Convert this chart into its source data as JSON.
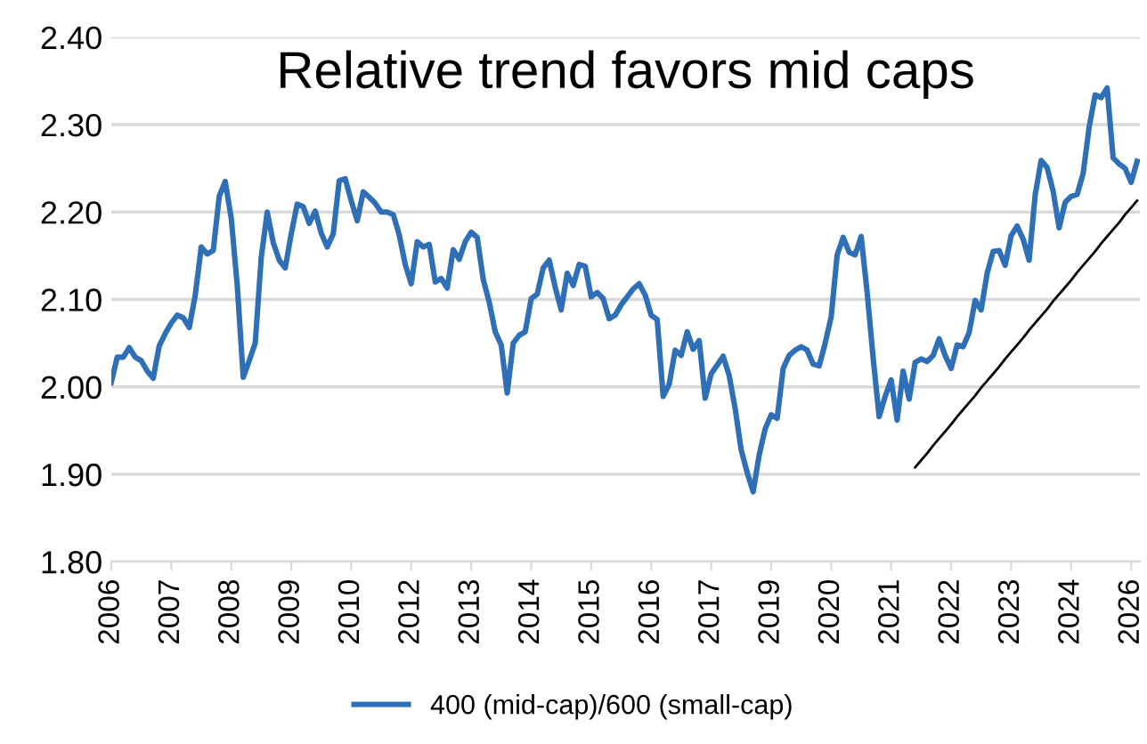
{
  "chart_data": {
    "type": "line",
    "title": "Relative trend favors mid caps",
    "categories": [
      "2006",
      null,
      null,
      null,
      null,
      null,
      null,
      null,
      null,
      null,
      "2007",
      null,
      null,
      null,
      null,
      null,
      null,
      null,
      null,
      null,
      "2008",
      null,
      null,
      null,
      null,
      null,
      null,
      null,
      null,
      null,
      "2009",
      null,
      null,
      null,
      null,
      null,
      null,
      null,
      null,
      null,
      "2010",
      null,
      null,
      null,
      null,
      null,
      null,
      null,
      null,
      null,
      "2012",
      null,
      null,
      null,
      null,
      null,
      null,
      null,
      null,
      null,
      "2013",
      null,
      null,
      null,
      null,
      null,
      null,
      null,
      null,
      null,
      "2014",
      null,
      null,
      null,
      null,
      null,
      null,
      null,
      null,
      null,
      "2015",
      null,
      null,
      null,
      null,
      null,
      null,
      null,
      null,
      null,
      "2016",
      null,
      null,
      null,
      null,
      null,
      null,
      null,
      null,
      null,
      "2017",
      null,
      null,
      null,
      null,
      null,
      null,
      null,
      null,
      null,
      "2019",
      null,
      null,
      null,
      null,
      null,
      null,
      null,
      null,
      null,
      "2020",
      null,
      null,
      null,
      null,
      null,
      null,
      null,
      null,
      null,
      "2021",
      null,
      null,
      null,
      null,
      null,
      null,
      null,
      null,
      null,
      "2022",
      null,
      null,
      null,
      null,
      null,
      null,
      null,
      null,
      null,
      "2023",
      null,
      null,
      null,
      null,
      null,
      null,
      null,
      null,
      null,
      "2024",
      null,
      null,
      null,
      null,
      null,
      null,
      null,
      null,
      null,
      "2026",
      null
    ],
    "ylim": [
      1.8,
      2.4
    ],
    "yticks": [
      {
        "value": 1.8,
        "label": "1.80"
      },
      {
        "value": 1.9,
        "label": "1.90"
      },
      {
        "value": 2.0,
        "label": "2.00"
      },
      {
        "value": 2.1,
        "label": "2.10"
      },
      {
        "value": 2.2,
        "label": "2.20"
      },
      {
        "value": 2.3,
        "label": "2.30"
      },
      {
        "value": 2.4,
        "label": "2.40"
      }
    ],
    "grid": "y",
    "legend": "bottom",
    "marker": "none",
    "line_style": "solid",
    "series": [
      {
        "name": "400 (mid-cap)/600 (small-cap)",
        "color": "#2e6fb7",
        "values": [
          2.005,
          2.034,
          2.034,
          2.045,
          2.034,
          2.03,
          2.018,
          2.01,
          2.047,
          2.061,
          2.073,
          2.082,
          2.079,
          2.068,
          2.105,
          2.16,
          2.152,
          2.156,
          2.218,
          2.235,
          2.193,
          2.116,
          2.011,
          2.03,
          2.05,
          2.148,
          2.2,
          2.165,
          2.145,
          2.136,
          2.175,
          2.209,
          2.206,
          2.187,
          2.201,
          2.176,
          2.16,
          2.175,
          2.236,
          2.238,
          2.213,
          2.19,
          2.223,
          2.217,
          2.21,
          2.2,
          2.2,
          2.197,
          2.174,
          2.14,
          2.118,
          2.166,
          2.16,
          2.163,
          2.12,
          2.124,
          2.113,
          2.157,
          2.146,
          2.166,
          2.177,
          2.171,
          2.123,
          2.097,
          2.063,
          2.048,
          1.993,
          2.05,
          2.059,
          2.063,
          2.101,
          2.106,
          2.136,
          2.145,
          2.114,
          2.088,
          2.13,
          2.116,
          2.14,
          2.138,
          2.103,
          2.108,
          2.101,
          2.078,
          2.082,
          2.094,
          2.103,
          2.112,
          2.118,
          2.105,
          2.082,
          2.077,
          1.989,
          2.003,
          2.042,
          2.036,
          2.063,
          2.043,
          2.053,
          1.987,
          2.015,
          2.025,
          2.035,
          2.013,
          1.975,
          1.928,
          1.902,
          1.88,
          1.922,
          1.952,
          1.968,
          1.964,
          2.021,
          2.036,
          2.042,
          2.046,
          2.042,
          2.026,
          2.024,
          2.05,
          2.08,
          2.151,
          2.171,
          2.154,
          2.151,
          2.172,
          2.108,
          2.033,
          1.966,
          1.989,
          2.008,
          1.962,
          2.018,
          1.986,
          2.028,
          2.032,
          2.029,
          2.036,
          2.055,
          2.036,
          2.021,
          2.048,
          2.046,
          2.062,
          2.099,
          2.088,
          2.13,
          2.155,
          2.156,
          2.139,
          2.173,
          2.184,
          2.169,
          2.145,
          2.219,
          2.259,
          2.251,
          2.224,
          2.182,
          2.211,
          2.218,
          2.22,
          2.244,
          2.297,
          2.334,
          2.331,
          2.342,
          2.262,
          2.255,
          2.25,
          2.234,
          2.258
        ]
      },
      {
        "color": "#000000",
        "values": [
          null,
          null,
          null,
          null,
          null,
          null,
          null,
          null,
          null,
          null,
          null,
          null,
          null,
          null,
          null,
          null,
          null,
          null,
          null,
          null,
          null,
          null,
          null,
          null,
          null,
          null,
          null,
          null,
          null,
          null,
          null,
          null,
          null,
          null,
          null,
          null,
          null,
          null,
          null,
          null,
          null,
          null,
          null,
          null,
          null,
          null,
          null,
          null,
          null,
          null,
          null,
          null,
          null,
          null,
          null,
          null,
          null,
          null,
          null,
          null,
          null,
          null,
          null,
          null,
          null,
          null,
          null,
          null,
          null,
          null,
          null,
          null,
          null,
          null,
          null,
          null,
          null,
          null,
          null,
          null,
          null,
          null,
          null,
          null,
          null,
          null,
          null,
          null,
          null,
          null,
          null,
          null,
          null,
          null,
          null,
          null,
          null,
          null,
          null,
          null,
          null,
          null,
          null,
          null,
          null,
          null,
          null,
          null,
          null,
          null,
          null,
          null,
          null,
          null,
          null,
          null,
          null,
          null,
          null,
          null,
          null,
          null,
          null,
          null,
          null,
          null,
          null,
          null,
          null,
          null,
          null,
          null,
          null,
          null,
          1.908,
          1.916,
          1.924,
          1.933,
          1.941,
          1.949,
          1.957,
          1.966,
          1.974,
          1.982,
          1.99,
          1.999,
          2.007,
          2.015,
          2.023,
          2.032,
          2.04,
          2.048,
          2.056,
          2.065,
          2.073,
          2.081,
          2.089,
          2.098,
          2.106,
          2.114,
          2.122,
          2.131,
          2.139,
          2.147,
          2.155,
          2.164,
          2.172,
          2.18,
          2.188,
          2.197,
          2.205,
          2.213
        ]
      }
    ]
  }
}
